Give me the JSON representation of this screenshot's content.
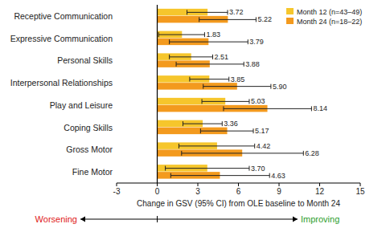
{
  "chart_data": {
    "type": "bar",
    "orientation": "horizontal",
    "x_label": "Change in GSV (95% CI) from OLE baseline to Month 24",
    "annotations": [
      {
        "text": "Worsening",
        "color": "#e02020"
      },
      {
        "text": "Improving",
        "color": "#2e9e2e"
      }
    ],
    "categories": [
      "Receptive Communication",
      "Expressive Communication",
      "Personal Skills",
      "Interpersonal Relationships",
      "Play and Leisure",
      "Coping Skills",
      "Gross Motor",
      "Fine Motor"
    ],
    "series": [
      {
        "name": "Month 12 (n=43–49)",
        "color": "#f6c62c",
        "values": [
          3.72,
          1.83,
          2.51,
          3.85,
          5.03,
          3.36,
          4.42,
          3.7
        ],
        "value_labels": [
          "3.72",
          "1.83",
          "2.51",
          "3.85",
          "5.03",
          "3.36",
          "4.42",
          "3.70"
        ],
        "ci_low": [
          2.2,
          0.1,
          0.9,
          2.4,
          3.3,
          1.9,
          1.6,
          0.6
        ],
        "ci_high": [
          5.2,
          3.5,
          4.1,
          5.3,
          6.8,
          4.8,
          7.2,
          6.8
        ]
      },
      {
        "name": "Month 24 (n=18–22)",
        "color": "#f39a1e",
        "values": [
          5.22,
          3.79,
          3.88,
          5.9,
          8.14,
          5.17,
          6.28,
          4.63
        ],
        "value_labels": [
          "5.22",
          "3.79",
          "3.88",
          "5.90",
          "8.14",
          "5.17",
          "6.28",
          "4.63"
        ],
        "ci_low": [
          3.1,
          0.9,
          1.4,
          3.4,
          4.9,
          3.2,
          1.8,
          1.0
        ],
        "ci_high": [
          7.3,
          6.7,
          6.4,
          8.4,
          11.4,
          7.1,
          10.8,
          8.3
        ]
      }
    ],
    "xlim": [
      -3,
      15
    ],
    "xticks": [
      -3,
      0,
      3,
      6,
      9,
      12,
      15
    ],
    "data_labels": true,
    "legend": "top-right",
    "grid": false
  }
}
